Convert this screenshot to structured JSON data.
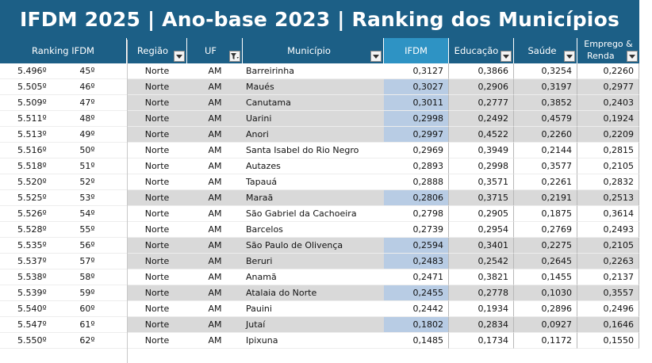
{
  "title": "IFDM 2025 | Ano-base 2023 | Ranking dos Municípios",
  "headers": {
    "ranking": "Ranking IFDM",
    "regiao": "Região",
    "uf": "UF",
    "municipio": "Município",
    "ifdm": "IFDM",
    "educacao": "Educação",
    "saude": "Saúde",
    "emprego_line1": "Emprego &",
    "emprego_line2": "Renda"
  },
  "icons": {
    "filter": "dropdown-arrow-icon",
    "active_filter": "filter-funnel-icon"
  },
  "colors": {
    "header_bg": "#1c5f86",
    "ifdm_header_bg": "#2e93c4",
    "row_shade": "#d9d9d9",
    "ifdm_highlight": "#b8cce4"
  },
  "rows": [
    {
      "rank_nat": "5.496º",
      "rank_state": "45º",
      "regiao": "Norte",
      "uf": "AM",
      "municipio": "Barreirinha",
      "ifdm": "0,3127",
      "educacao": "0,3866",
      "saude": "0,3254",
      "emprego": "0,2260",
      "shaded": false,
      "ifdm_hl": false
    },
    {
      "rank_nat": "5.505º",
      "rank_state": "46º",
      "regiao": "Norte",
      "uf": "AM",
      "municipio": "Maués",
      "ifdm": "0,3027",
      "educacao": "0,2906",
      "saude": "0,3197",
      "emprego": "0,2977",
      "shaded": true,
      "ifdm_hl": true
    },
    {
      "rank_nat": "5.509º",
      "rank_state": "47º",
      "regiao": "Norte",
      "uf": "AM",
      "municipio": "Canutama",
      "ifdm": "0,3011",
      "educacao": "0,2777",
      "saude": "0,3852",
      "emprego": "0,2403",
      "shaded": true,
      "ifdm_hl": true
    },
    {
      "rank_nat": "5.511º",
      "rank_state": "48º",
      "regiao": "Norte",
      "uf": "AM",
      "municipio": "Uarini",
      "ifdm": "0,2998",
      "educacao": "0,2492",
      "saude": "0,4579",
      "emprego": "0,1924",
      "shaded": true,
      "ifdm_hl": true
    },
    {
      "rank_nat": "5.513º",
      "rank_state": "49º",
      "regiao": "Norte",
      "uf": "AM",
      "municipio": "Anori",
      "ifdm": "0,2997",
      "educacao": "0,4522",
      "saude": "0,2260",
      "emprego": "0,2209",
      "shaded": true,
      "ifdm_hl": true
    },
    {
      "rank_nat": "5.516º",
      "rank_state": "50º",
      "regiao": "Norte",
      "uf": "AM",
      "municipio": "Santa Isabel do Rio Negro",
      "ifdm": "0,2969",
      "educacao": "0,3949",
      "saude": "0,2144",
      "emprego": "0,2815",
      "shaded": false,
      "ifdm_hl": false
    },
    {
      "rank_nat": "5.518º",
      "rank_state": "51º",
      "regiao": "Norte",
      "uf": "AM",
      "municipio": "Autazes",
      "ifdm": "0,2893",
      "educacao": "0,2998",
      "saude": "0,3577",
      "emprego": "0,2105",
      "shaded": false,
      "ifdm_hl": false
    },
    {
      "rank_nat": "5.520º",
      "rank_state": "52º",
      "regiao": "Norte",
      "uf": "AM",
      "municipio": "Tapauá",
      "ifdm": "0,2888",
      "educacao": "0,3571",
      "saude": "0,2261",
      "emprego": "0,2832",
      "shaded": false,
      "ifdm_hl": false
    },
    {
      "rank_nat": "5.525º",
      "rank_state": "53º",
      "regiao": "Norte",
      "uf": "AM",
      "municipio": "Maraã",
      "ifdm": "0,2806",
      "educacao": "0,3715",
      "saude": "0,2191",
      "emprego": "0,2513",
      "shaded": true,
      "ifdm_hl": true
    },
    {
      "rank_nat": "5.526º",
      "rank_state": "54º",
      "regiao": "Norte",
      "uf": "AM",
      "municipio": "São Gabriel da Cachoeira",
      "ifdm": "0,2798",
      "educacao": "0,2905",
      "saude": "0,1875",
      "emprego": "0,3614",
      "shaded": false,
      "ifdm_hl": false
    },
    {
      "rank_nat": "5.528º",
      "rank_state": "55º",
      "regiao": "Norte",
      "uf": "AM",
      "municipio": "Barcelos",
      "ifdm": "0,2739",
      "educacao": "0,2954",
      "saude": "0,2769",
      "emprego": "0,2493",
      "shaded": false,
      "ifdm_hl": false
    },
    {
      "rank_nat": "5.535º",
      "rank_state": "56º",
      "regiao": "Norte",
      "uf": "AM",
      "municipio": "São Paulo de Olivença",
      "ifdm": "0,2594",
      "educacao": "0,3401",
      "saude": "0,2275",
      "emprego": "0,2105",
      "shaded": true,
      "ifdm_hl": true
    },
    {
      "rank_nat": "5.537º",
      "rank_state": "57º",
      "regiao": "Norte",
      "uf": "AM",
      "municipio": "Beruri",
      "ifdm": "0,2483",
      "educacao": "0,2542",
      "saude": "0,2645",
      "emprego": "0,2263",
      "shaded": true,
      "ifdm_hl": true
    },
    {
      "rank_nat": "5.538º",
      "rank_state": "58º",
      "regiao": "Norte",
      "uf": "AM",
      "municipio": "Anamã",
      "ifdm": "0,2471",
      "educacao": "0,3821",
      "saude": "0,1455",
      "emprego": "0,2137",
      "shaded": false,
      "ifdm_hl": false
    },
    {
      "rank_nat": "5.539º",
      "rank_state": "59º",
      "regiao": "Norte",
      "uf": "AM",
      "municipio": "Atalaia do Norte",
      "ifdm": "0,2455",
      "educacao": "0,2778",
      "saude": "0,1030",
      "emprego": "0,3557",
      "shaded": true,
      "ifdm_hl": true
    },
    {
      "rank_nat": "5.540º",
      "rank_state": "60º",
      "regiao": "Norte",
      "uf": "AM",
      "municipio": "Pauini",
      "ifdm": "0,2442",
      "educacao": "0,1934",
      "saude": "0,2896",
      "emprego": "0,2496",
      "shaded": false,
      "ifdm_hl": false
    },
    {
      "rank_nat": "5.547º",
      "rank_state": "61º",
      "regiao": "Norte",
      "uf": "AM",
      "municipio": "Jutaí",
      "ifdm": "0,1802",
      "educacao": "0,2834",
      "saude": "0,0927",
      "emprego": "0,1646",
      "shaded": true,
      "ifdm_hl": true
    },
    {
      "rank_nat": "5.550º",
      "rank_state": "62º",
      "regiao": "Norte",
      "uf": "AM",
      "municipio": "Ipixuna",
      "ifdm": "0,1485",
      "educacao": "0,1734",
      "saude": "0,1172",
      "emprego": "0,1550",
      "shaded": false,
      "ifdm_hl": false
    }
  ]
}
